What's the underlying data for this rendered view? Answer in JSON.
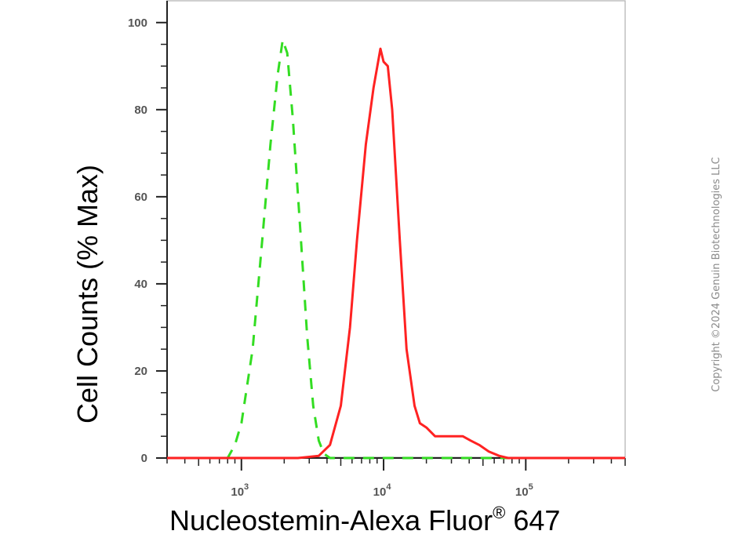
{
  "chart_data": {
    "type": "line",
    "xscale": "log",
    "xlim": [
      300,
      500000
    ],
    "ylim": [
      0,
      105
    ],
    "ylabel": "Cell Counts (% Max)",
    "xlabel": {
      "main": "Nucleostemin-Alexa Fluor",
      "superscript": "®",
      "suffix": " 647"
    },
    "y_ticks": [
      0,
      20,
      40,
      60,
      80,
      100
    ],
    "y_tick_labels": [
      "0",
      "20",
      "40",
      "60",
      "80",
      "100"
    ],
    "x_major_ticks": [
      1000,
      10000,
      100000
    ],
    "x_tick_labels": [
      {
        "base": "10",
        "exp": "3"
      },
      {
        "base": "10",
        "exp": "4"
      },
      {
        "base": "10",
        "exp": "5"
      }
    ],
    "series": [
      {
        "color": "#33dd22",
        "style": "dashed",
        "x": [
          300,
          800,
          900,
          1000,
          1200,
          1400,
          1600,
          1800,
          1950,
          2100,
          2300,
          2600,
          2900,
          3200,
          3500,
          3800,
          4200,
          5000,
          500000
        ],
        "y": [
          0,
          0,
          3,
          8,
          25,
          50,
          72,
          88,
          96,
          93,
          78,
          52,
          28,
          12,
          4,
          1,
          0,
          0,
          0
        ]
      },
      {
        "color": "#ff2222",
        "style": "solid",
        "x": [
          300,
          2500,
          3500,
          4200,
          5000,
          5800,
          6500,
          7500,
          8500,
          9500,
          10000,
          10700,
          11500,
          13000,
          14500,
          16500,
          18000,
          20000,
          23000,
          27000,
          31000,
          36000,
          41000,
          47000,
          55000,
          65000,
          75000,
          90000,
          500000
        ],
        "y": [
          0,
          0,
          0.5,
          3,
          12,
          30,
          50,
          72,
          85,
          94,
          91,
          90,
          80,
          50,
          25,
          12,
          8,
          7,
          5,
          5,
          5,
          5,
          4,
          3,
          1.5,
          0.5,
          0,
          0,
          0
        ]
      }
    ]
  },
  "copyright": "Copyright ©2024 Genuin Biotechnologies LLC"
}
